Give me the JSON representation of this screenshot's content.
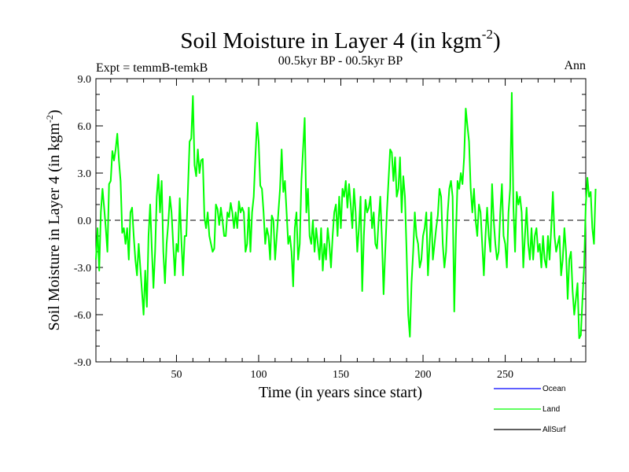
{
  "chart_data": {
    "type": "line",
    "title": "Soil Moisture in Layer 4 (in kgm",
    "title_sup": "-2",
    "title_close": ")",
    "subtitle_left": "Expt = temmB-temkB",
    "subtitle_center": "00.5kyr BP - 00.5kyr BP",
    "subtitle_right": "Ann",
    "xlabel": "Time (in years since start)",
    "ylabel": "Soil Moisture in Layer 4 (in kgm",
    "ylabel_sup": "-2",
    "ylabel_close": ")",
    "xlim": [
      1,
      299
    ],
    "ylim": [
      -9,
      9
    ],
    "x_ticks": [
      50,
      100,
      150,
      200,
      250
    ],
    "x_tick_labels": [
      "50",
      "100",
      "150",
      "200",
      "250"
    ],
    "y_ticks": [
      -9,
      -6,
      -3,
      0,
      3,
      6,
      9
    ],
    "y_tick_labels": [
      "-9.0",
      "-6.0",
      "-3.0",
      "0.0",
      "3.0",
      "6.0",
      "9.0"
    ],
    "zero_line": true,
    "legend": {
      "placement": "bottom-right",
      "entries": [
        {
          "name": "Ocean",
          "color": "#0000ff"
        },
        {
          "name": "Land",
          "color": "#00ff00"
        },
        {
          "name": "AllSurf",
          "color": "#000000"
        }
      ]
    },
    "series": [
      {
        "name": "Land",
        "color": "#00ff00",
        "x_start": 1,
        "x_step": 1,
        "values": [
          -2.5,
          -0.5,
          -3.2,
          0.5,
          2.0,
          0.8,
          -0.5,
          -2.0,
          2.3,
          2.5,
          4.4,
          3.8,
          4.5,
          5.5,
          3.8,
          2.5,
          -0.8,
          -0.5,
          -1.5,
          -0.5,
          -2.5,
          0.5,
          0.8,
          -1.0,
          -2.5,
          -3.5,
          -1.5,
          -3.0,
          -4.5,
          -6.0,
          -3.2,
          -5.5,
          -1.0,
          1.0,
          -1.8,
          -4.3,
          -2.0,
          1.5,
          2.9,
          0.5,
          2.5,
          -2.0,
          -4.0,
          -1.5,
          -0.2,
          1.5,
          0.5,
          -1.5,
          -3.5,
          -1.5,
          -2.0,
          1.4,
          -1.3,
          -3.5,
          -1.0,
          -1.0,
          2.0,
          5.0,
          5.2,
          7.9,
          3.5,
          2.8,
          4.5,
          3.0,
          3.8,
          3.9,
          0.2,
          -0.5,
          0.5,
          -1.0,
          -1.5,
          -2.0,
          -1.8,
          1.0,
          0.7,
          -0.3,
          0.8,
          0.0,
          -1.0,
          -1.0,
          0.5,
          0.2,
          1.1,
          0.5,
          -0.5,
          0.5,
          -0.5,
          1.2,
          0.5,
          0.8,
          0.5,
          -2.0,
          -1.5,
          0.8,
          -2.0,
          0.5,
          1.5,
          4.0,
          6.2,
          5.0,
          2.2,
          2.0,
          0.5,
          -1.5,
          -0.5,
          -1.0,
          -2.5,
          0.3,
          0.0,
          -2.5,
          -1.0,
          0.5,
          2.0,
          4.5,
          1.8,
          2.5,
          0.5,
          -1.5,
          -1.0,
          -2.0,
          -4.2,
          -0.5,
          0.5,
          -2.5,
          -1.5,
          2.5,
          4.5,
          6.5,
          0.5,
          2.0,
          -1.0,
          -1.5,
          0.0,
          -2.0,
          -0.5,
          -1.5,
          -2.5,
          -0.5,
          -3.2,
          -1.5,
          -2.5,
          -0.5,
          -1.5,
          -3.0,
          -1.0,
          0.5,
          1.0,
          -1.0,
          1.5,
          -0.5,
          2.0,
          1.5,
          2.5,
          0.8,
          2.3,
          1.0,
          -0.5,
          2.0,
          0.5,
          -2.0,
          -0.5,
          1.5,
          -4.5,
          -1.0,
          1.3,
          0.5,
          0.8,
          1.5,
          -0.5,
          0.5,
          -1.5,
          -1.8,
          0.0,
          1.5,
          -1.2,
          -4.7,
          -2.0,
          0.5,
          2.5,
          4.5,
          4.3,
          2.5,
          4.0,
          1.5,
          2.0,
          4.0,
          0.5,
          2.8,
          1.5,
          -2.0,
          -6.0,
          -7.4,
          -4.0,
          -2.0,
          0.5,
          -1.0,
          -1.5,
          -3.0,
          -2.5,
          -1.0,
          -0.5,
          0.5,
          -3.5,
          -1.5,
          0.5,
          -2.5,
          -1.5,
          -0.5,
          0.3,
          2.0,
          1.5,
          -1.5,
          -3.0,
          -2.0,
          0.5,
          2.0,
          2.5,
          1.5,
          -5.8,
          -1.0,
          2.5,
          2.0,
          3.0,
          2.3,
          4.0,
          7.1,
          6.0,
          5.0,
          2.0,
          0.5,
          2.0,
          0.0,
          -1.0,
          1.0,
          0.5,
          -1.5,
          -3.5,
          -1.0,
          0.8,
          -1.0,
          -2.0,
          2.3,
          0.0,
          -1.5,
          -2.5,
          -2.0,
          0.5,
          2.3,
          -1.0,
          -1.5,
          -3.0,
          0.5,
          2.0,
          8.1,
          0.8,
          -2.0,
          1.8,
          1.0,
          1.5,
          0.5,
          -3.0,
          -1.0,
          0.8,
          -1.5,
          -2.5,
          -0.5,
          -2.5,
          -1.0,
          -0.5,
          -2.0,
          -1.5,
          -3.0,
          -1.0,
          -2.5,
          -3.0,
          -1.0,
          -2.5,
          -0.5,
          1.8,
          -1.0,
          -2.0,
          -1.5,
          -1.0,
          -3.5,
          -2.5,
          -0.5,
          -2.0,
          -5.0,
          -2.5,
          -2.0,
          -4.5,
          -6.0,
          -5.0,
          -4.0,
          -7.5,
          -7.3,
          -5.0,
          -3.0,
          1.0,
          2.7,
          1.5,
          1.8,
          -0.5,
          -1.5,
          2.0
        ]
      }
    ]
  }
}
